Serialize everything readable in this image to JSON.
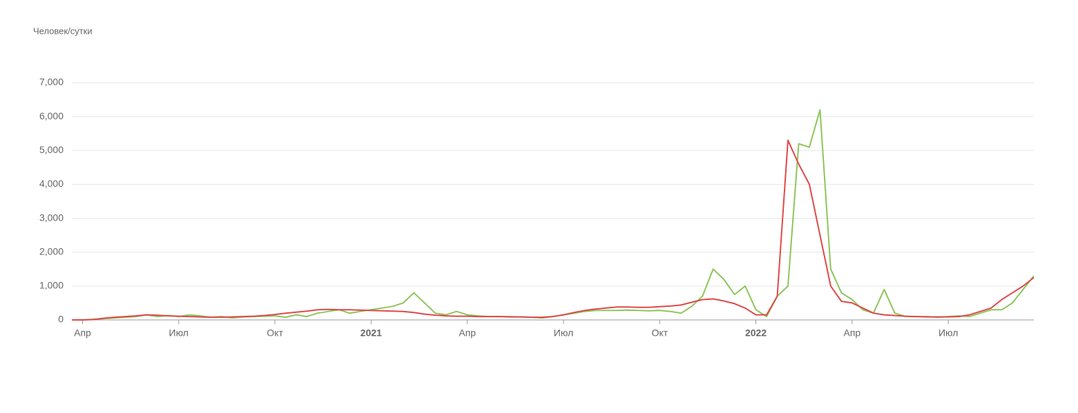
{
  "chart_data": {
    "type": "line",
    "y_label": "Человек/сутки",
    "categories": [
      null,
      "Апр",
      null,
      null,
      null,
      null,
      null,
      null,
      null,
      null,
      "Июл",
      null,
      null,
      null,
      null,
      null,
      null,
      null,
      null,
      "Окт",
      null,
      null,
      null,
      null,
      null,
      null,
      null,
      null,
      "2021",
      null,
      null,
      null,
      null,
      null,
      null,
      null,
      null,
      "Апр",
      null,
      null,
      null,
      null,
      null,
      null,
      null,
      null,
      "Июл",
      null,
      null,
      null,
      null,
      null,
      null,
      null,
      null,
      "Окт",
      null,
      null,
      null,
      null,
      null,
      null,
      null,
      null,
      "2022",
      null,
      null,
      null,
      null,
      null,
      null,
      null,
      null,
      "Апр",
      null,
      null,
      null,
      null,
      null,
      null,
      null,
      null,
      "Июл",
      null,
      null,
      null,
      null,
      null,
      null,
      null,
      null
    ],
    "series": [
      {
        "color": "#e04848",
        "values": [
          0,
          0,
          10,
          50,
          80,
          100,
          120,
          150,
          140,
          120,
          110,
          100,
          90,
          80,
          80,
          90,
          100,
          110,
          130,
          160,
          200,
          230,
          260,
          300,
          310,
          300,
          300,
          290,
          280,
          270,
          260,
          250,
          220,
          170,
          140,
          120,
          110,
          110,
          100,
          100,
          100,
          90,
          90,
          80,
          80,
          100,
          150,
          220,
          280,
          320,
          350,
          380,
          380,
          370,
          370,
          390,
          410,
          440,
          520,
          600,
          620,
          560,
          480,
          350,
          150,
          150,
          700,
          5300,
          4600,
          4000,
          2500,
          1000,
          550,
          500,
          350,
          200,
          150,
          130,
          110,
          100,
          90,
          90,
          90,
          100,
          150,
          250,
          350,
          600,
          800,
          1000,
          1250
        ]
      },
      {
        "color": "#8dc55a",
        "values": [
          0,
          0,
          20,
          40,
          60,
          80,
          100,
          150,
          100,
          130,
          100,
          150,
          120,
          80,
          100,
          60,
          90,
          100,
          110,
          120,
          80,
          150,
          100,
          200,
          250,
          300,
          200,
          250,
          300,
          350,
          400,
          500,
          800,
          500,
          200,
          150,
          250,
          150,
          120,
          100,
          100,
          100,
          90,
          80,
          60,
          100,
          150,
          200,
          250,
          280,
          280,
          280,
          290,
          280,
          270,
          280,
          250,
          200,
          400,
          700,
          1500,
          1200,
          750,
          1000,
          300,
          100,
          700,
          1000,
          5200,
          5100,
          6200,
          1500,
          800,
          600,
          300,
          200,
          900,
          200,
          100,
          100,
          100,
          80,
          100,
          120,
          100,
          200,
          300,
          300,
          500,
          900,
          1300
        ]
      }
    ],
    "ylim": [
      0,
      7000
    ],
    "yticks": [
      0,
      {
        "value": 1000,
        "label": "1,000"
      },
      {
        "value": 2000,
        "label": "2,000"
      },
      {
        "value": 3000,
        "label": "3,000"
      },
      {
        "value": 4000,
        "label": "4,000"
      },
      {
        "value": 5000,
        "label": "5,000"
      },
      {
        "value": 6000,
        "label": "6,000"
      },
      {
        "value": 7000,
        "label": "7,000"
      }
    ],
    "grid": true
  }
}
